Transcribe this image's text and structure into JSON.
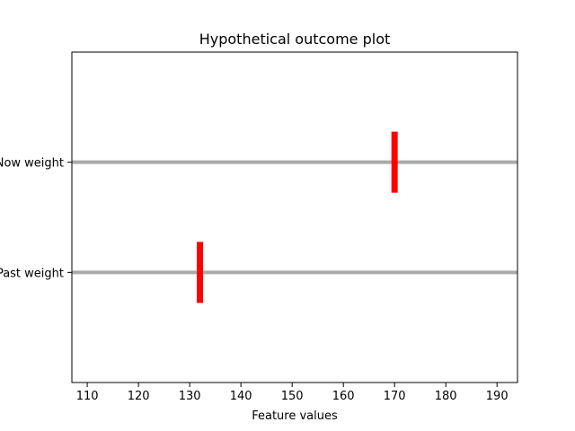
{
  "chart_data": {
    "type": "scatter",
    "title": "Hypothetical outcome plot",
    "xlabel": "Feature values",
    "ylabel": "",
    "xlim": [
      107,
      194
    ],
    "ylim": [
      -1,
      2
    ],
    "x_ticks": [
      110,
      120,
      130,
      140,
      150,
      160,
      170,
      180,
      190
    ],
    "y_ticks": [
      {
        "value": 1,
        "label": "Now weight"
      },
      {
        "value": 0,
        "label": "Past weight"
      }
    ],
    "series": [
      {
        "label": "Now weight",
        "y": 1,
        "x": 170
      },
      {
        "label": "Past weight",
        "y": 0,
        "x": 132
      }
    ],
    "marker": "vertical line",
    "marker_color": "#ff0000",
    "reference_line_color": "#aaaaaa",
    "grid": false,
    "legend": "none"
  }
}
